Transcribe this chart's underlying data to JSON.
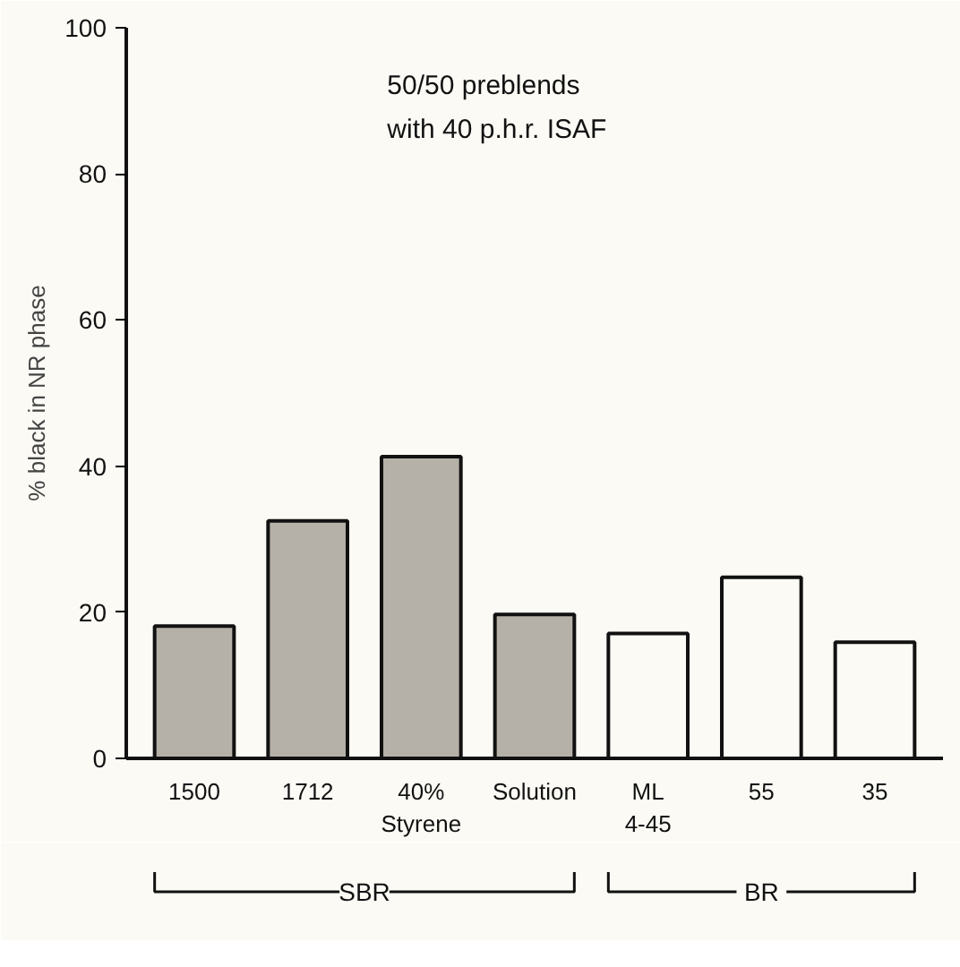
{
  "chart_data": {
    "type": "bar",
    "ylabel": "% black in NR phase",
    "categories": [
      "1500",
      "1712",
      "40%\nStyrene",
      "Solution",
      "ML\n4-45",
      "55",
      "35"
    ],
    "values": [
      18.1,
      32.5,
      41.3,
      19.7,
      17.1,
      24.8,
      15.9
    ],
    "colors": [
      "#b5b1a8",
      "#b5b1a8",
      "#b5b1a8",
      "#b5b1a8",
      "#fbfaf5",
      "#fbfaf5",
      "#fbfaf5"
    ],
    "ylim": [
      0,
      100
    ],
    "yticks": [
      0,
      20,
      40,
      60,
      80,
      100
    ],
    "grid": false,
    "annotations": [
      "50/50 preblends\nwith 40 p.h.r. ISAF",
      "SBR",
      "BR"
    ]
  }
}
